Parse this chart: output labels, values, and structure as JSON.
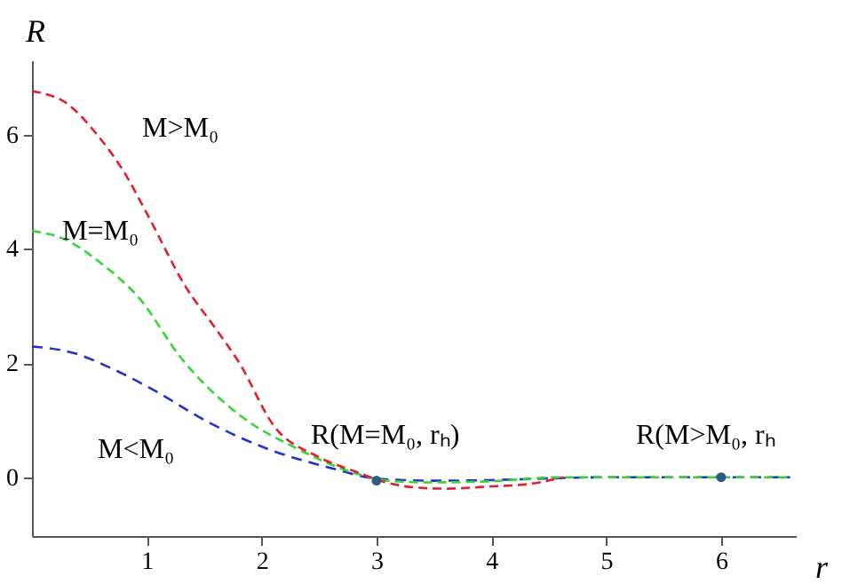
{
  "chart_data": {
    "type": "line",
    "xlabel": "r",
    "ylabel": "R",
    "xlim": [
      0,
      6.65
    ],
    "ylim": [
      -1.03,
      7.3
    ],
    "xticks": [
      1,
      2,
      3,
      4,
      5,
      6
    ],
    "yticks": [
      0,
      2,
      4,
      6
    ],
    "grid": false,
    "line_style": "dashed",
    "series": [
      {
        "color": "#e0202a",
        "x": [
          0,
          0.3,
          0.57,
          0.8,
          1.0,
          1.34,
          1.6,
          1.8,
          2.11,
          2.48,
          2.83,
          3.1,
          3.34,
          3.6,
          4.0,
          4.32,
          4.63
        ],
        "values": [
          6.76,
          6.55,
          5.99,
          5.35,
          4.62,
          3.33,
          2.6,
          2.02,
          0.89,
          0.37,
          0.09,
          -0.1,
          -0.18,
          -0.2,
          -0.16,
          -0.12,
          0
        ]
      },
      {
        "color": "#33d633",
        "x": [
          0,
          0.26,
          0.6,
          0.94,
          1.29,
          1.8,
          2.32,
          2.83,
          3.1,
          3.45,
          4.0,
          4.6,
          5.0,
          5.5,
          6.0,
          6.6
        ],
        "values": [
          4.31,
          4.19,
          3.75,
          3.12,
          2.11,
          1.1,
          0.49,
          0.06,
          -0.06,
          -0.09,
          -0.07,
          0,
          0,
          0,
          0,
          0
        ]
      },
      {
        "color": "#2233cc",
        "x": [
          0,
          0.37,
          0.7,
          1.03,
          1.55,
          2.06,
          2.57,
          3.03,
          3.5,
          4.0,
          4.5,
          5.0,
          5.5,
          6.0,
          6.6
        ],
        "values": [
          2.29,
          2.17,
          1.9,
          1.56,
          0.95,
          0.49,
          0.18,
          -0.03,
          -0.06,
          -0.05,
          -0.02,
          0,
          0,
          0,
          0
        ]
      },
      {
        "type": "scatter",
        "marker": "circle",
        "color": "#2b5d80",
        "x": [
          3,
          6
        ],
        "values": [
          -0.06,
          0
        ]
      }
    ],
    "annotations": [
      "M>M₀",
      "M=M₀",
      "M<M₀",
      "R(M=M₀, rₕ)",
      "R(M>M₀, rₕ"
    ]
  }
}
